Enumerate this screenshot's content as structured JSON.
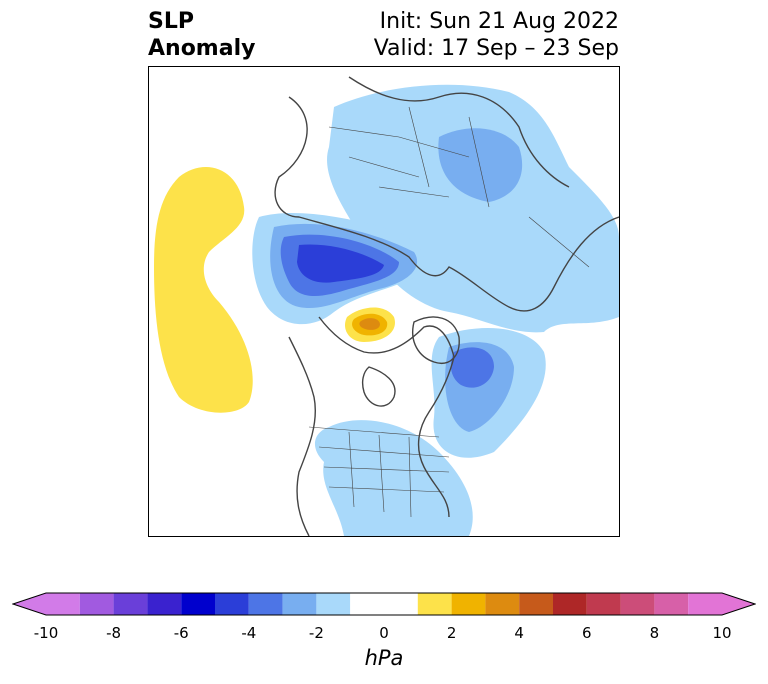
{
  "title": {
    "left_line1": "SLP",
    "left_line2": "Anomaly",
    "right_line1": "Init: Sun 21 Aug 2022",
    "right_line2": "Valid: 17 Sep – 23 Sep"
  },
  "colorbar": {
    "unit": "hPa",
    "ticks": [
      "-10",
      "-8",
      "-6",
      "-4",
      "-2",
      "0",
      "2",
      "4",
      "6",
      "8",
      "10"
    ],
    "bins": [
      {
        "range": [
          -10,
          -9
        ],
        "color": "#d27be8"
      },
      {
        "range": [
          -9,
          -8
        ],
        "color": "#a15ae0"
      },
      {
        "range": [
          -8,
          -7
        ],
        "color": "#6a3fd9"
      },
      {
        "range": [
          -7,
          -6
        ],
        "color": "#3a22cf"
      },
      {
        "range": [
          -6,
          -5
        ],
        "color": "#0000cd"
      },
      {
        "range": [
          -5,
          -4
        ],
        "color": "#2b3ed8"
      },
      {
        "range": [
          -4,
          -3
        ],
        "color": "#4d75e6"
      },
      {
        "range": [
          -3,
          -2
        ],
        "color": "#78aef0"
      },
      {
        "range": [
          -2,
          -1
        ],
        "color": "#a9d9fa"
      },
      {
        "range": [
          -1,
          1
        ],
        "color": "#ffffff"
      },
      {
        "range": [
          1,
          2
        ],
        "color": "#fde24a"
      },
      {
        "range": [
          2,
          3
        ],
        "color": "#f0b300"
      },
      {
        "range": [
          3,
          4
        ],
        "color": "#dd8b10"
      },
      {
        "range": [
          4,
          5
        ],
        "color": "#c65a1b"
      },
      {
        "range": [
          5,
          6
        ],
        "color": "#ae2727"
      },
      {
        "range": [
          6,
          7
        ],
        "color": "#c03a4f"
      },
      {
        "range": [
          7,
          8
        ],
        "color": "#cc4d79"
      },
      {
        "range": [
          8,
          9
        ],
        "color": "#d760a8"
      },
      {
        "range": [
          9,
          10
        ],
        "color": "#e274d6"
      }
    ],
    "extend_low_color": "#d27be8",
    "extend_high_color": "#e274d6"
  },
  "map": {
    "projection": "north-polar-stereographic",
    "coastline_color": "#444444",
    "anomalies": [
      {
        "feature": "positive-anomaly-north-pacific",
        "level": "+1 to +2 hPa"
      },
      {
        "feature": "positive-anomaly-arctic-canada",
        "level": "+3 to +4 hPa"
      },
      {
        "feature": "negative-anomaly-bering-east-siberia",
        "level": "-4 to -5 hPa"
      },
      {
        "feature": "negative-anomaly-north-atlantic",
        "level": "-3 to -4 hPa"
      },
      {
        "feature": "negative-anomaly-northern-europe",
        "level": "-2 to -3 hPa"
      },
      {
        "feature": "negative-anomaly-eastern-us",
        "level": "-1 to -2 hPa"
      }
    ]
  }
}
